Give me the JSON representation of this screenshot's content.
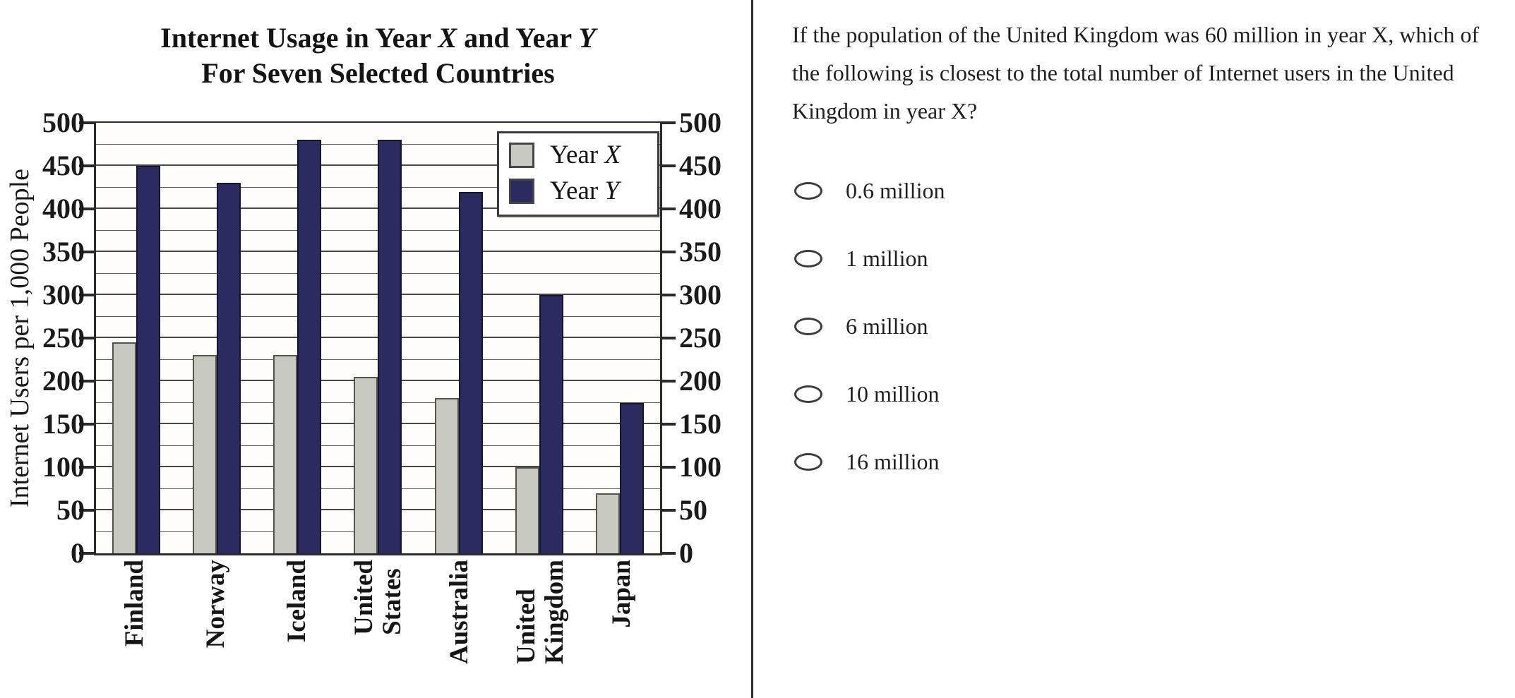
{
  "chart_data": {
    "type": "bar",
    "title": "Internet Usage in Year X and Year Y",
    "title_runs": [
      {
        "text": "Internet Usage in Year ",
        "italic": false
      },
      {
        "text": "X",
        "italic": true
      },
      {
        "text": " and Year ",
        "italic": false
      },
      {
        "text": "Y",
        "italic": true
      }
    ],
    "subtitle": "For Seven Selected Countries",
    "ylabel": "Internet Users per 1,000 People",
    "ylim": [
      0,
      500
    ],
    "ytick_step": 50,
    "grid_step": 25,
    "grid": true,
    "legend_position": "top-right",
    "categories": [
      "Finland",
      "Norway",
      "Iceland",
      "United States",
      "Australia",
      "United Kingdom",
      "Japan"
    ],
    "series": [
      {
        "name": "Year X",
        "color": "#c8c9c0",
        "border_color": "#55544a",
        "values": [
          245,
          230,
          230,
          205,
          180,
          100,
          70
        ]
      },
      {
        "name": "Year Y",
        "color": "#2b2b62",
        "border_color": "#15152f",
        "values": [
          450,
          430,
          480,
          480,
          420,
          300,
          175
        ]
      }
    ]
  },
  "question": {
    "text": "If the population of the United Kingdom was 60 million in year X, which of the following is closest to the total number of Internet users in the United Kingdom in year X?",
    "options": [
      {
        "label": "0.6 million",
        "selected": false
      },
      {
        "label": "1 million",
        "selected": false
      },
      {
        "label": "6 million",
        "selected": false
      },
      {
        "label": "10 million",
        "selected": false
      },
      {
        "label": "16 million",
        "selected": false
      }
    ]
  }
}
